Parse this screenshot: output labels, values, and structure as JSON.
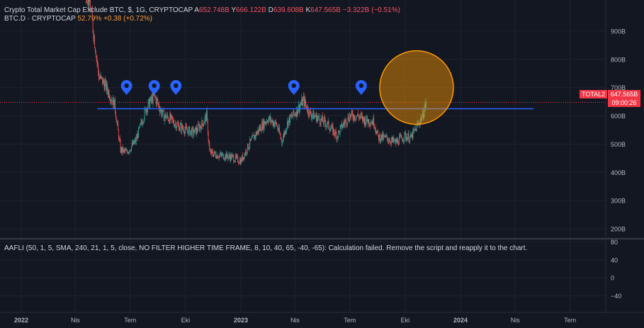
{
  "legend": {
    "main_title": "Crypto Total Market Cap Exclude BTC, $, 1G, CRYPTOCAP",
    "ohlc": [
      {
        "k": "A",
        "v": "652.748B"
      },
      {
        "k": "Y",
        "v": "666.122B"
      },
      {
        "k": "D",
        "v": "639.608B"
      },
      {
        "k": "K",
        "v": "647.565B"
      }
    ],
    "change": "−3.322B (−0.51%)",
    "second_title": "BTC.D · CRYPTOCAP",
    "second_value": "52.79%",
    "second_change": "+0.38 (+0.72%)"
  },
  "indicator": {
    "text": "AAFLI (50, 1, 5, SMA, 240, 21, 1, 5, close, NO FILTER HIGHER TIME FRAME, 8, 10, 40, 65, -40, -65): Calculation failed. Remove the script and reapply it to the chart."
  },
  "price_label": {
    "symbol": "TOTAL2",
    "value": "647.565B",
    "countdown": "09:00:26"
  },
  "colors": {
    "background": "#131722",
    "up": "#26a69a",
    "down": "#ef5350",
    "line": "#2962ff",
    "circle": "#ff9800",
    "marker": "#2962ff"
  },
  "chart_data": {
    "type": "candlestick",
    "y_axis": {
      "ticks": [
        200,
        300,
        400,
        500,
        600,
        700,
        800,
        900
      ],
      "tick_labels": [
        "200B",
        "300B",
        "400B",
        "500B",
        "600B",
        "700B",
        "800B",
        "900B"
      ],
      "ylim": [
        170,
        1010
      ]
    },
    "x_axis": {
      "ticks": [
        "2022",
        "Nis",
        "Tem",
        "Eki",
        "2023",
        "Nis",
        "Tem",
        "Eki",
        "2024",
        "Nis",
        "Tem"
      ]
    },
    "indicator_axis": {
      "ticks": [
        80,
        40,
        0,
        -40
      ],
      "tick_labels": [
        "80",
        "40",
        "0",
        "−40"
      ],
      "ylim": [
        -75,
        82
      ]
    },
    "horizontal_line": {
      "value": 625
    },
    "last_price": 647.565,
    "markers": [
      {
        "date": "2022-06-25"
      },
      {
        "date": "2022-08-10"
      },
      {
        "date": "2022-09-15"
      },
      {
        "date": "2023-03-30"
      },
      {
        "date": "2023-07-20"
      }
    ],
    "highlight_circle": {
      "date": "2023-10-20",
      "value": 700
    },
    "price_path": [
      {
        "date": "2022-01-01",
        "value": 1180
      },
      {
        "date": "2022-01-20",
        "value": 1120
      },
      {
        "date": "2022-02-10",
        "value": 1150
      },
      {
        "date": "2022-03-10",
        "value": 1060
      },
      {
        "date": "2022-04-01",
        "value": 1150
      },
      {
        "date": "2022-04-25",
        "value": 1000
      },
      {
        "date": "2022-05-10",
        "value": 740
      },
      {
        "date": "2022-05-20",
        "value": 710
      },
      {
        "date": "2022-06-05",
        "value": 640
      },
      {
        "date": "2022-06-15",
        "value": 480
      },
      {
        "date": "2022-06-25",
        "value": 470
      },
      {
        "date": "2022-07-10",
        "value": 510
      },
      {
        "date": "2022-07-28",
        "value": 630
      },
      {
        "date": "2022-08-10",
        "value": 670
      },
      {
        "date": "2022-08-25",
        "value": 600
      },
      {
        "date": "2022-09-05",
        "value": 590
      },
      {
        "date": "2022-09-15",
        "value": 570
      },
      {
        "date": "2022-10-01",
        "value": 550
      },
      {
        "date": "2022-10-15",
        "value": 540
      },
      {
        "date": "2022-10-28",
        "value": 570
      },
      {
        "date": "2022-11-05",
        "value": 600
      },
      {
        "date": "2022-11-10",
        "value": 470
      },
      {
        "date": "2022-11-25",
        "value": 460
      },
      {
        "date": "2022-12-15",
        "value": 455
      },
      {
        "date": "2023-01-01",
        "value": 440
      },
      {
        "date": "2023-01-15",
        "value": 500
      },
      {
        "date": "2023-02-01",
        "value": 555
      },
      {
        "date": "2023-02-15",
        "value": 590
      },
      {
        "date": "2023-03-01",
        "value": 570
      },
      {
        "date": "2023-03-10",
        "value": 510
      },
      {
        "date": "2023-03-20",
        "value": 580
      },
      {
        "date": "2023-04-01",
        "value": 610
      },
      {
        "date": "2023-04-15",
        "value": 655
      },
      {
        "date": "2023-04-25",
        "value": 610
      },
      {
        "date": "2023-05-10",
        "value": 590
      },
      {
        "date": "2023-05-25",
        "value": 570
      },
      {
        "date": "2023-06-10",
        "value": 530
      },
      {
        "date": "2023-06-20",
        "value": 570
      },
      {
        "date": "2023-07-01",
        "value": 600
      },
      {
        "date": "2023-07-15",
        "value": 600
      },
      {
        "date": "2023-07-25",
        "value": 585
      },
      {
        "date": "2023-08-10",
        "value": 580
      },
      {
        "date": "2023-08-17",
        "value": 525
      },
      {
        "date": "2023-09-01",
        "value": 520
      },
      {
        "date": "2023-09-15",
        "value": 505
      },
      {
        "date": "2023-10-01",
        "value": 530
      },
      {
        "date": "2023-10-10",
        "value": 520
      },
      {
        "date": "2023-10-20",
        "value": 560
      },
      {
        "date": "2023-10-30",
        "value": 600
      },
      {
        "date": "2023-11-05",
        "value": 647
      }
    ]
  }
}
